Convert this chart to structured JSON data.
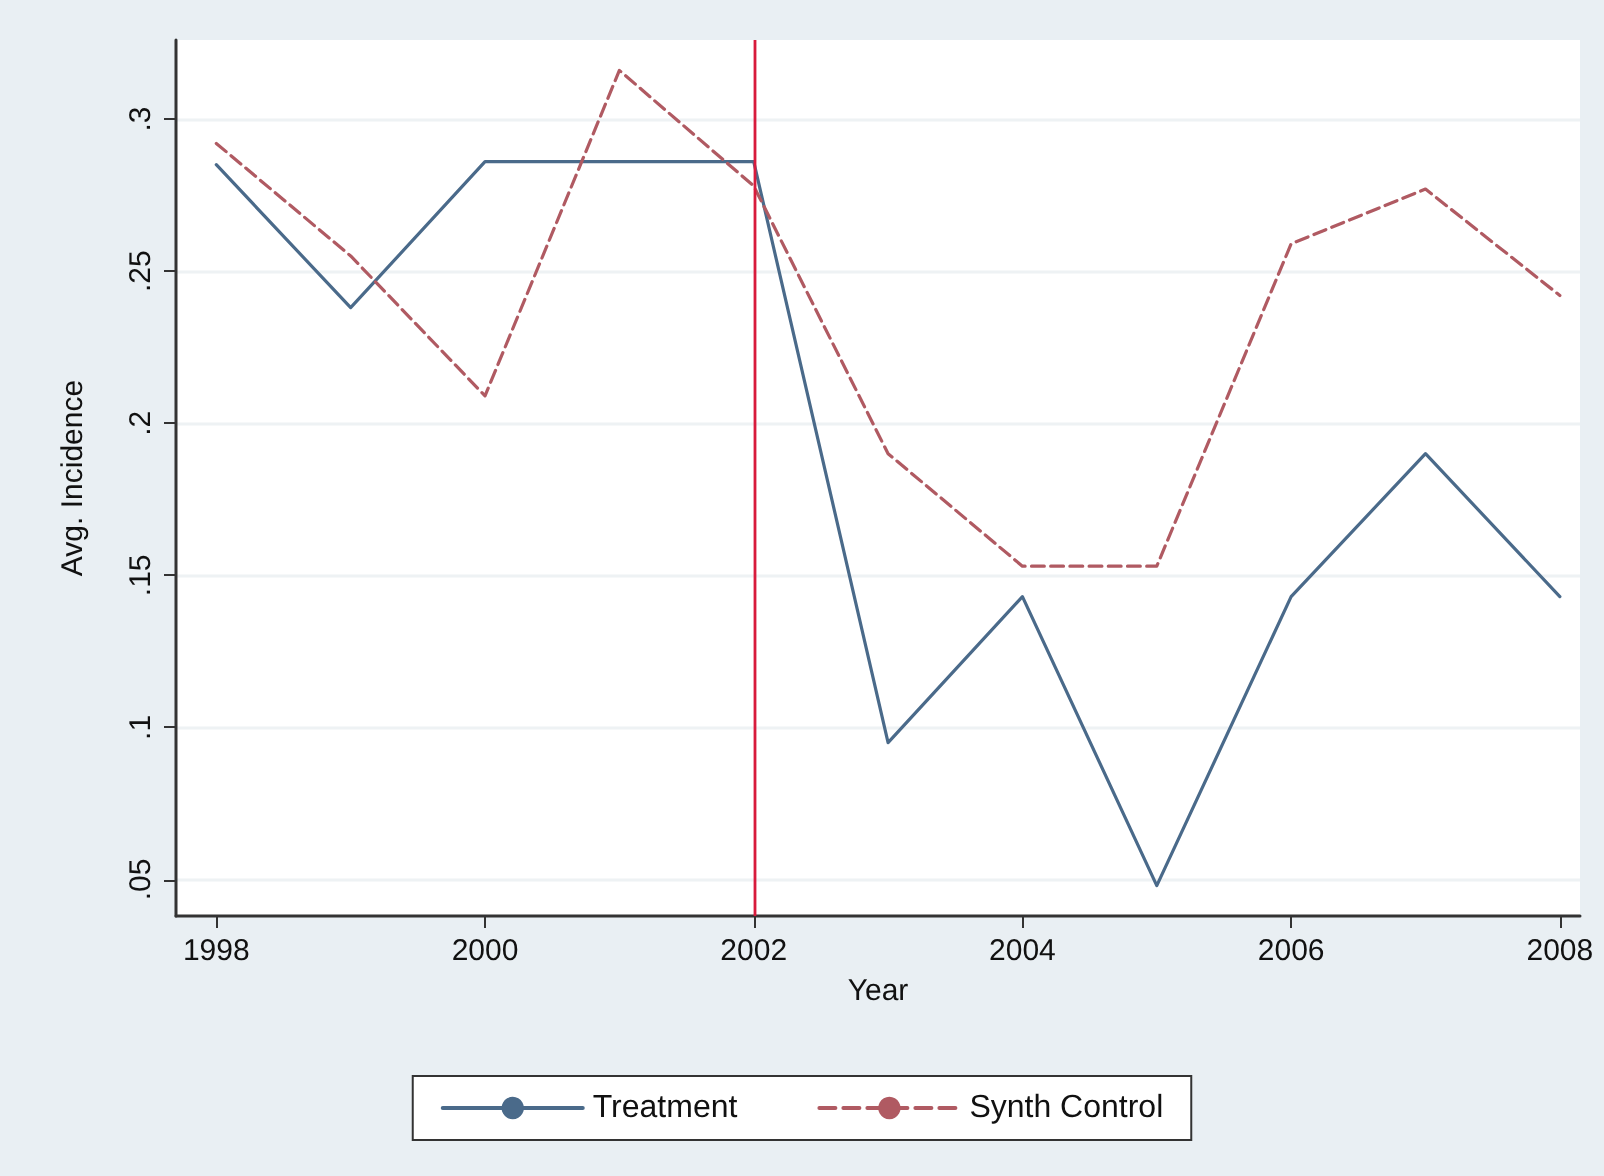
{
  "chart_data": {
    "type": "line",
    "xlabel": "Year",
    "ylabel": "Avg. Incidence",
    "x": [
      1998,
      1999,
      2000,
      2001,
      2002,
      2003,
      2004,
      2005,
      2006,
      2007,
      2008
    ],
    "series": [
      {
        "name": "Treatment",
        "color": "#4a6a8a",
        "line_style": "solid",
        "values": [
          0.285,
          0.238,
          0.286,
          0.286,
          0.286,
          0.095,
          0.143,
          0.048,
          0.143,
          0.19,
          0.143
        ]
      },
      {
        "name": "Synth Control",
        "color": "#b05a62",
        "line_style": "dashed",
        "values": [
          0.292,
          0.255,
          0.209,
          0.316,
          0.278,
          0.19,
          0.153,
          0.153,
          0.259,
          0.277,
          0.242
        ]
      }
    ],
    "xlim": [
      1997.7,
      2008.15
    ],
    "xticks": [
      1998,
      2000,
      2002,
      2004,
      2006,
      2008
    ],
    "ylim": [
      0.038,
      0.326
    ],
    "yticks": [
      {
        "value": 0.05,
        "label": ".05"
      },
      {
        "value": 0.1,
        "label": ".1"
      },
      {
        "value": 0.15,
        "label": ".15"
      },
      {
        "value": 0.2,
        "label": ".2"
      },
      {
        "value": 0.25,
        "label": ".25"
      },
      {
        "value": 0.3,
        "label": ".3"
      }
    ],
    "ref_lines": [
      {
        "axis": "x",
        "value": 2002,
        "color": "#d81b3c",
        "line_style": "solid"
      }
    ],
    "grid": "y",
    "legend": "bottom",
    "marker": "none"
  }
}
